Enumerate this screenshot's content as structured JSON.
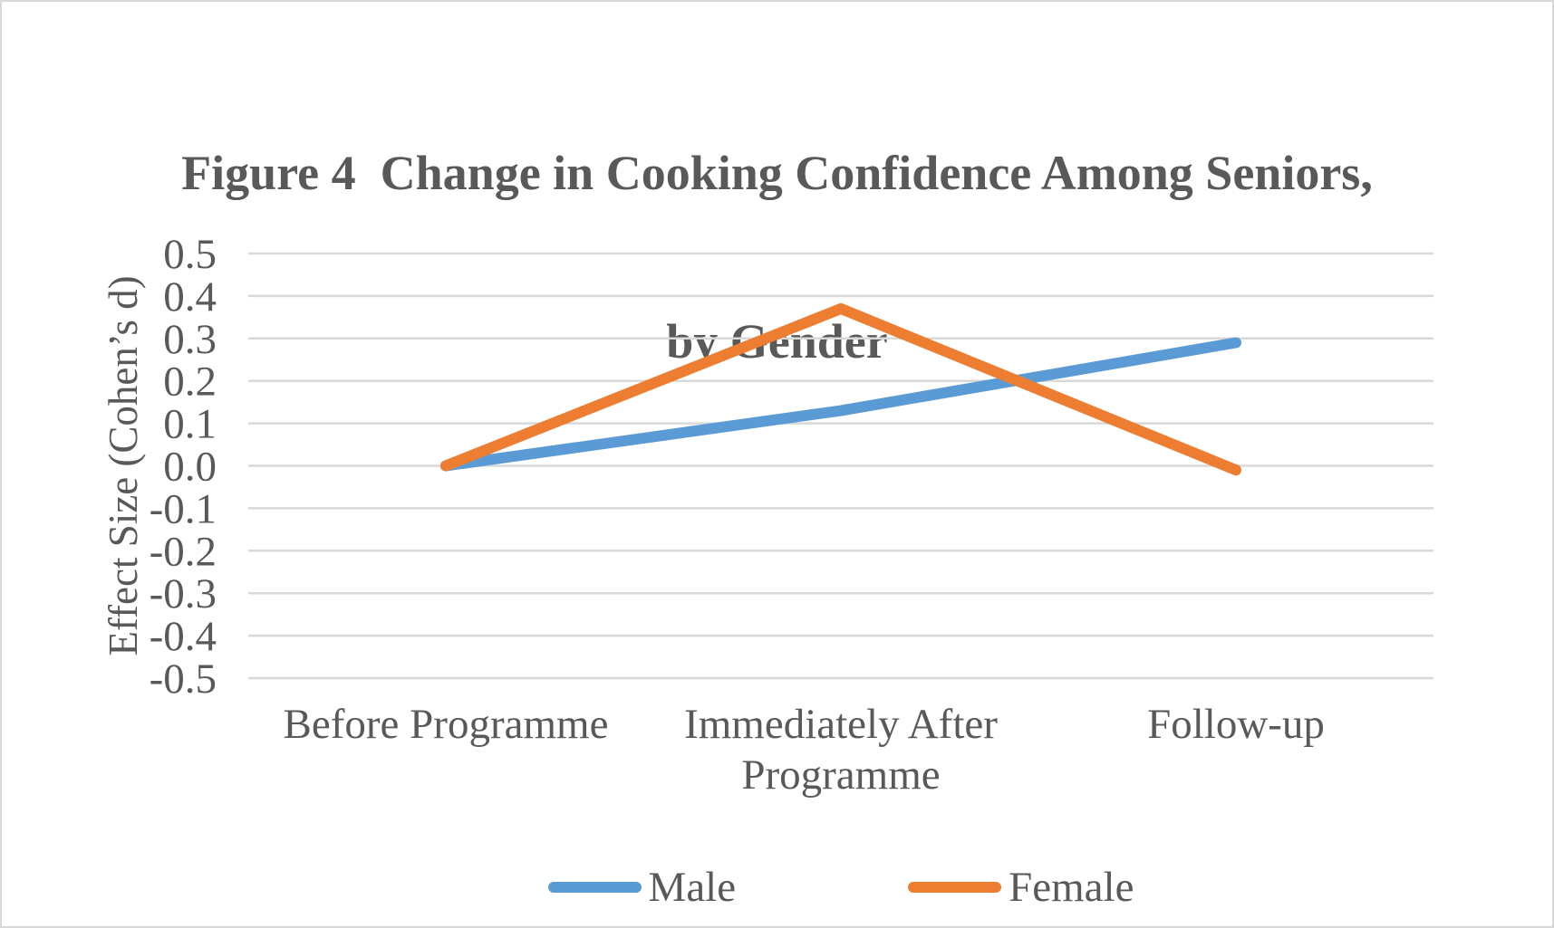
{
  "title": {
    "line1": "Figure 4  Change in Cooking Confidence Among Seniors,",
    "line2": "by Gender"
  },
  "chart_data": {
    "type": "line",
    "categories": [
      [
        "Before Programme"
      ],
      [
        "Immediately After",
        "Programme"
      ],
      [
        "Follow-up"
      ]
    ],
    "series": [
      {
        "name": "Male",
        "color": "#5B9BD5",
        "values": [
          0.0,
          0.13,
          0.29
        ]
      },
      {
        "name": "Female",
        "color": "#ED7D31",
        "values": [
          0.0,
          0.37,
          -0.01
        ]
      }
    ],
    "xlabel": "",
    "ylabel": "Effect Size (Cohen’s d)",
    "ylim": [
      -0.5,
      0.5
    ],
    "ytick_step": 0.1,
    "ytick_labels": [
      "0.5",
      "0.4",
      "0.3",
      "0.2",
      "0.1",
      "0.0",
      "-0.1",
      "-0.2",
      "-0.3",
      "-0.4",
      "-0.5"
    ],
    "grid": true,
    "legend_position": "bottom"
  },
  "legend": [
    {
      "label": "Male",
      "color": "#5B9BD5"
    },
    {
      "label": "Female",
      "color": "#ED7D31"
    }
  ],
  "colors": {
    "text": "#595959",
    "gridline": "#D9D9D9",
    "male": "#5B9BD5",
    "female": "#ED7D31",
    "background": "#FFFFFF",
    "border": "#D8D8D8"
  }
}
